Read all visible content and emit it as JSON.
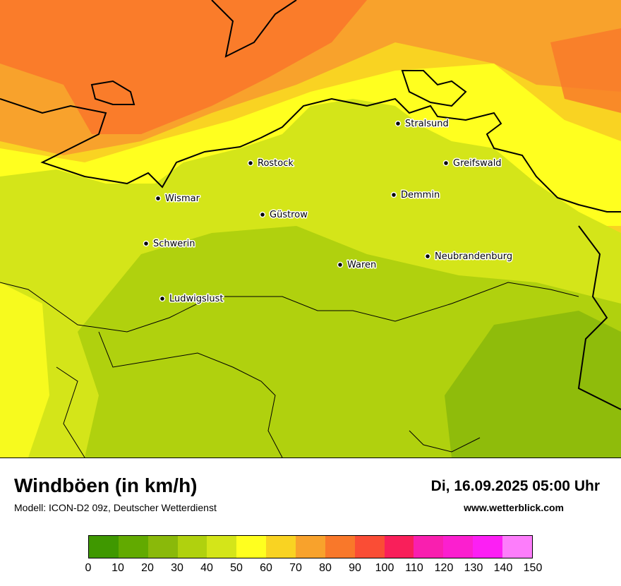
{
  "title": "Windböen (in km/h)",
  "subtitle": "Modell: ICON-D2 09z, Deutscher Wetterdienst",
  "datetime": "Di, 16.09.2025 05:00 Uhr",
  "website": "www.wetterblick.com",
  "cities": [
    {
      "name": "Stralsund"
    },
    {
      "name": "Rostock"
    },
    {
      "name": "Greifswald"
    },
    {
      "name": "Wismar"
    },
    {
      "name": "Demmin"
    },
    {
      "name": "Güstrow"
    },
    {
      "name": "Schwerin"
    },
    {
      "name": "Neubrandenburg"
    },
    {
      "name": "Waren"
    },
    {
      "name": "Ludwigslust"
    }
  ],
  "legend": {
    "colors": [
      "#3f9800",
      "#62aa00",
      "#8ab90a",
      "#b0d10e",
      "#d4e519",
      "#ffff1f",
      "#f9d322",
      "#f8a22c",
      "#f9782a",
      "#fa4d35",
      "#f91f5a",
      "#f91faf",
      "#fb1fcf",
      "#fc1ff4",
      "#fd7dfb"
    ],
    "ticks": [
      "0",
      "10",
      "20",
      "30",
      "40",
      "50",
      "60",
      "70",
      "80",
      "90",
      "100",
      "110",
      "120",
      "130",
      "140",
      "150"
    ]
  }
}
